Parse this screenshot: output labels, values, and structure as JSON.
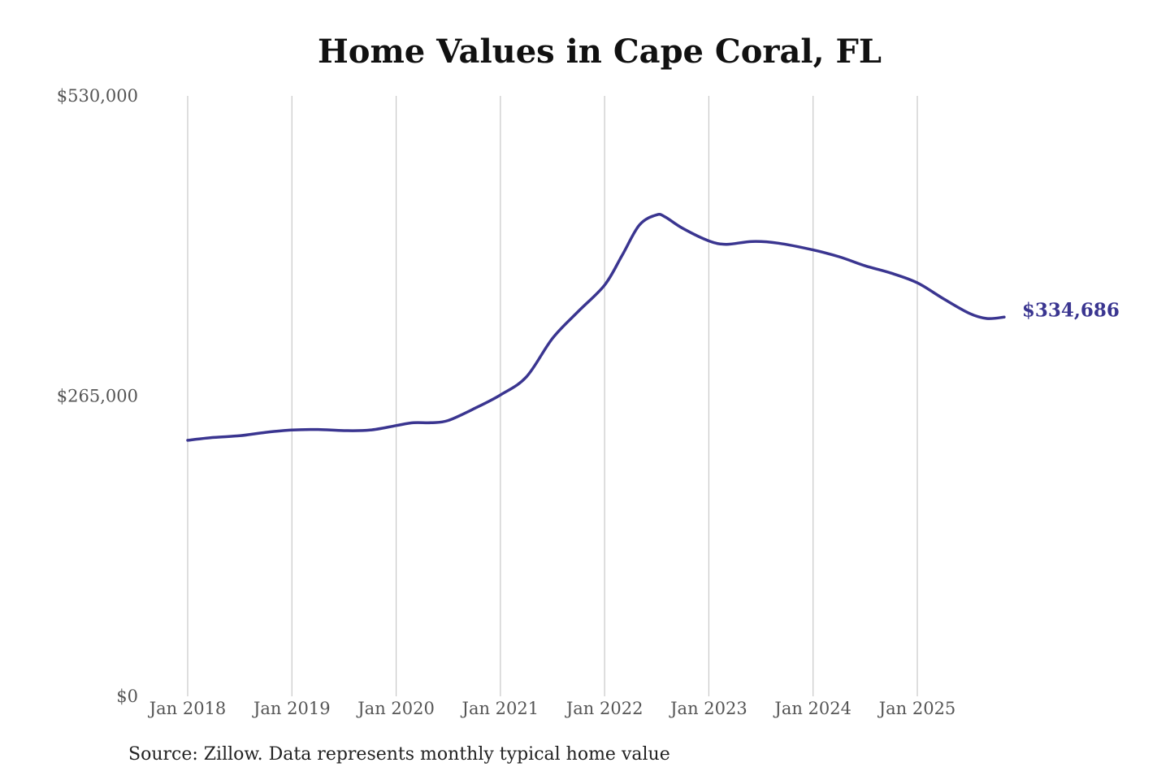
{
  "chart_data": {
    "type": "line",
    "title": "Home Values in Cape Coral, FL",
    "source": "Source: Zillow. Data represents monthly typical home value",
    "xlabel": "",
    "ylabel": "",
    "ylim": [
      0,
      530000
    ],
    "y_ticks": [
      {
        "value": 0,
        "label": "$0"
      },
      {
        "value": 265000,
        "label": "$265,000"
      },
      {
        "value": 530000,
        "label": "$530,000"
      }
    ],
    "x_ticks": [
      {
        "value": "2018-01",
        "label": "Jan 2018"
      },
      {
        "value": "2019-01",
        "label": "Jan 2019"
      },
      {
        "value": "2020-01",
        "label": "Jan 2020"
      },
      {
        "value": "2021-01",
        "label": "Jan 2021"
      },
      {
        "value": "2022-01",
        "label": "Jan 2022"
      },
      {
        "value": "2023-01",
        "label": "Jan 2023"
      },
      {
        "value": "2024-01",
        "label": "Jan 2024"
      },
      {
        "value": "2025-01",
        "label": "Jan 2025"
      }
    ],
    "grid": "vertical",
    "line_color": "#3a3590",
    "end_label": "$334,686",
    "series": [
      {
        "x": [
          "2018-01",
          "2018-04",
          "2018-07",
          "2018-10",
          "2019-01",
          "2019-04",
          "2019-07",
          "2019-10",
          "2020-01",
          "2020-03",
          "2020-05",
          "2020-07",
          "2020-10",
          "2021-01",
          "2021-04",
          "2021-07",
          "2021-10",
          "2022-01",
          "2022-03",
          "2022-05",
          "2022-07",
          "2022-08",
          "2022-10",
          "2023-01",
          "2023-03",
          "2023-06",
          "2023-09",
          "2024-01",
          "2024-04",
          "2024-07",
          "2024-10",
          "2025-01",
          "2025-04",
          "2025-07",
          "2025-09",
          "2025-11"
        ],
        "values": [
          226000,
          228500,
          230000,
          233000,
          235000,
          235500,
          234500,
          235000,
          239000,
          241500,
          241500,
          243500,
          254000,
          266000,
          282000,
          316000,
          340000,
          363000,
          389000,
          416000,
          425000,
          423000,
          413000,
          402000,
          399000,
          401500,
          400000,
          394000,
          388000,
          380000,
          373500,
          365000,
          351000,
          338000,
          333500,
          334686
        ]
      }
    ]
  }
}
